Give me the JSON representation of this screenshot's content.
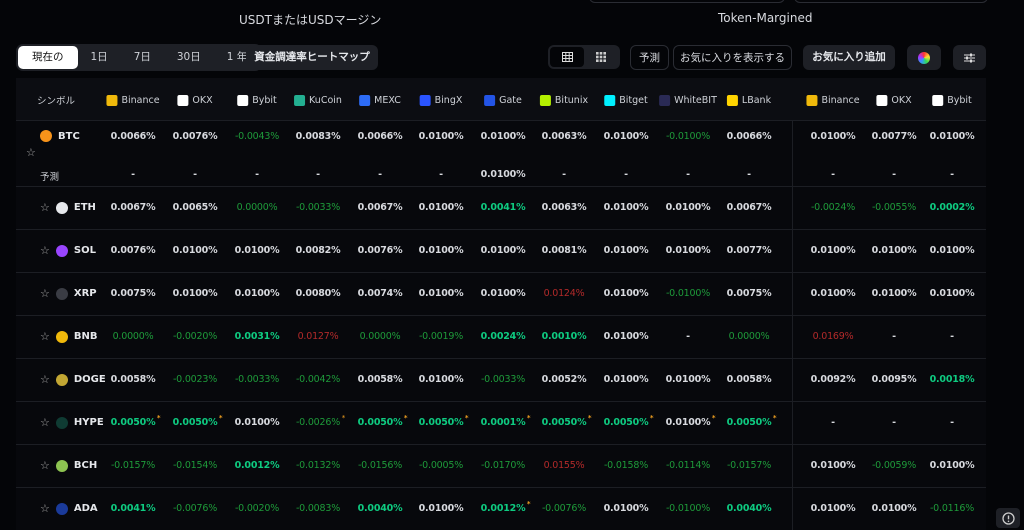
{
  "sections": {
    "usdt": "USDTまたはUSDマージン",
    "token": "Token-Margined"
  },
  "periods": [
    "現在の",
    "1日",
    "7日",
    "30日",
    "1 年"
  ],
  "heatmap_button": "資金調達率ヒートマップ",
  "toolbar": {
    "forecast": "予測",
    "show_favorites": "お気に入りを表示する",
    "add_favorites": "お気に入り追加"
  },
  "table": {
    "symbol_header": "シンボル",
    "exchanges": [
      {
        "name": "Binance",
        "color": "#f0b90b"
      },
      {
        "name": "OKX",
        "color": "#ffffff"
      },
      {
        "name": "Bybit",
        "color": "#ffffff"
      },
      {
        "name": "KuCoin",
        "color": "#23af91"
      },
      {
        "name": "MEXC",
        "color": "#2d6cf6"
      },
      {
        "name": "BingX",
        "color": "#2a54ff"
      },
      {
        "name": "Gate",
        "color": "#2354e6"
      },
      {
        "name": "Bitunix",
        "color": "#b4f000"
      },
      {
        "name": "Bitget",
        "color": "#00f0ff"
      },
      {
        "name": "WhiteBIT",
        "color": "#2a2a55"
      },
      {
        "name": "LBank",
        "color": "#ffd400"
      },
      {
        "name": "Binance",
        "color": "#f0b90b"
      },
      {
        "name": "OKX",
        "color": "#ffffff"
      },
      {
        "name": "Bybit",
        "color": "#ffffff"
      }
    ],
    "forecast_label": "予測",
    "tone_colors": {
      "w": "#d8dadf",
      "g": "#0ecb81",
      "d": "#1e9a3a",
      "r": "#b22a2a"
    },
    "rows": [
      {
        "symbol": "BTC",
        "coin_color": "#f7931a",
        "cells": [
          [
            "0.0066%",
            "w"
          ],
          [
            "0.0076%",
            "w"
          ],
          [
            "-0.0043%",
            "d"
          ],
          [
            "0.0083%",
            "w"
          ],
          [
            "0.0066%",
            "w"
          ],
          [
            "0.0100%",
            "w"
          ],
          [
            "0.0100%",
            "w"
          ],
          [
            "0.0063%",
            "w"
          ],
          [
            "0.0100%",
            "w"
          ],
          [
            "-0.0100%",
            "d"
          ],
          [
            "0.0066%",
            "w"
          ],
          [
            "0.0100%",
            "w"
          ],
          [
            "0.0077%",
            "w"
          ],
          [
            "0.0100%",
            "w"
          ]
        ],
        "forecast": [
          [
            "-",
            "w"
          ],
          [
            "-",
            "w"
          ],
          [
            "-",
            "w"
          ],
          [
            "-",
            "w"
          ],
          [
            "-",
            "w"
          ],
          [
            "-",
            "w"
          ],
          [
            "0.0100%",
            "w"
          ],
          [
            "-",
            "w"
          ],
          [
            "-",
            "w"
          ],
          [
            "-",
            "w"
          ],
          [
            "-",
            "w"
          ],
          [
            "-",
            "w"
          ],
          [
            "-",
            "w"
          ],
          [
            "-",
            "w"
          ]
        ]
      },
      {
        "symbol": "ETH",
        "coin_color": "#e6e8ec",
        "cells": [
          [
            "0.0067%",
            "w"
          ],
          [
            "0.0065%",
            "w"
          ],
          [
            "0.0000%",
            "d"
          ],
          [
            "-0.0033%",
            "d"
          ],
          [
            "0.0067%",
            "w"
          ],
          [
            "0.0100%",
            "w"
          ],
          [
            "0.0041%",
            "g"
          ],
          [
            "0.0063%",
            "w"
          ],
          [
            "0.0100%",
            "w"
          ],
          [
            "0.0100%",
            "w"
          ],
          [
            "0.0067%",
            "w"
          ],
          [
            "-0.0024%",
            "d"
          ],
          [
            "-0.0055%",
            "d"
          ],
          [
            "0.0002%",
            "g"
          ]
        ]
      },
      {
        "symbol": "SOL",
        "coin_color": "#9945ff",
        "cells": [
          [
            "0.0076%",
            "w"
          ],
          [
            "0.0100%",
            "w"
          ],
          [
            "0.0100%",
            "w"
          ],
          [
            "0.0082%",
            "w"
          ],
          [
            "0.0076%",
            "w"
          ],
          [
            "0.0100%",
            "w"
          ],
          [
            "0.0100%",
            "w"
          ],
          [
            "0.0081%",
            "w"
          ],
          [
            "0.0100%",
            "w"
          ],
          [
            "0.0100%",
            "w"
          ],
          [
            "0.0077%",
            "w"
          ],
          [
            "0.0100%",
            "w"
          ],
          [
            "0.0100%",
            "w"
          ],
          [
            "0.0100%",
            "w"
          ]
        ]
      },
      {
        "symbol": "XRP",
        "coin_color": "#3a3c44",
        "cells": [
          [
            "0.0075%",
            "w"
          ],
          [
            "0.0100%",
            "w"
          ],
          [
            "0.0100%",
            "w"
          ],
          [
            "0.0080%",
            "w"
          ],
          [
            "0.0074%",
            "w"
          ],
          [
            "0.0100%",
            "w"
          ],
          [
            "0.0100%",
            "w"
          ],
          [
            "0.0124%",
            "r"
          ],
          [
            "0.0100%",
            "w"
          ],
          [
            "-0.0100%",
            "d"
          ],
          [
            "0.0075%",
            "w"
          ],
          [
            "0.0100%",
            "w"
          ],
          [
            "0.0100%",
            "w"
          ],
          [
            "0.0100%",
            "w"
          ]
        ]
      },
      {
        "symbol": "BNB",
        "coin_color": "#f0b90b",
        "cells": [
          [
            "0.0000%",
            "d"
          ],
          [
            "-0.0020%",
            "d"
          ],
          [
            "0.0031%",
            "g"
          ],
          [
            "0.0127%",
            "r"
          ],
          [
            "0.0000%",
            "d"
          ],
          [
            "-0.0019%",
            "d"
          ],
          [
            "0.0024%",
            "g"
          ],
          [
            "0.0010%",
            "g"
          ],
          [
            "0.0100%",
            "w"
          ],
          [
            "-",
            "w"
          ],
          [
            "0.0000%",
            "d"
          ],
          [
            "0.0169%",
            "r"
          ],
          [
            "-",
            "w"
          ],
          [
            "-",
            "w"
          ]
        ]
      },
      {
        "symbol": "DOGE",
        "coin_color": "#c2a633",
        "cells": [
          [
            "0.0058%",
            "w"
          ],
          [
            "-0.0023%",
            "d"
          ],
          [
            "-0.0033%",
            "d"
          ],
          [
            "-0.0042%",
            "d"
          ],
          [
            "0.0058%",
            "w"
          ],
          [
            "0.0100%",
            "w"
          ],
          [
            "-0.0033%",
            "d"
          ],
          [
            "0.0052%",
            "w"
          ],
          [
            "0.0100%",
            "w"
          ],
          [
            "0.0100%",
            "w"
          ],
          [
            "0.0058%",
            "w"
          ],
          [
            "0.0092%",
            "w"
          ],
          [
            "0.0095%",
            "w"
          ],
          [
            "0.0018%",
            "g"
          ]
        ]
      },
      {
        "symbol": "HYPE",
        "coin_color": "#0f3b33",
        "cells": [
          [
            "0.0050%",
            "g",
            "*"
          ],
          [
            "0.0050%",
            "g",
            "*"
          ],
          [
            "0.0100%",
            "w"
          ],
          [
            "-0.0026%",
            "d",
            "*"
          ],
          [
            "0.0050%",
            "g",
            "*"
          ],
          [
            "0.0050%",
            "g",
            "*"
          ],
          [
            "0.0001%",
            "g",
            "*"
          ],
          [
            "0.0050%",
            "g",
            "*"
          ],
          [
            "0.0050%",
            "g",
            "*"
          ],
          [
            "0.0100%",
            "w",
            "*"
          ],
          [
            "0.0050%",
            "g",
            "*"
          ],
          [
            "-",
            "w"
          ],
          [
            "-",
            "w"
          ],
          [
            "-",
            "w"
          ]
        ]
      },
      {
        "symbol": "BCH",
        "coin_color": "#8dc351",
        "cells": [
          [
            "-0.0157%",
            "d"
          ],
          [
            "-0.0154%",
            "d"
          ],
          [
            "0.0012%",
            "g"
          ],
          [
            "-0.0132%",
            "d"
          ],
          [
            "-0.0156%",
            "d"
          ],
          [
            "-0.0005%",
            "d"
          ],
          [
            "-0.0170%",
            "d"
          ],
          [
            "0.0155%",
            "r"
          ],
          [
            "-0.0158%",
            "d"
          ],
          [
            "-0.0114%",
            "d"
          ],
          [
            "-0.0157%",
            "d"
          ],
          [
            "0.0100%",
            "w"
          ],
          [
            "-0.0059%",
            "d"
          ],
          [
            "0.0100%",
            "w"
          ]
        ]
      },
      {
        "symbol": "ADA",
        "coin_color": "#1a3a9a",
        "cells": [
          [
            "0.0041%",
            "g"
          ],
          [
            "-0.0076%",
            "d"
          ],
          [
            "-0.0020%",
            "d"
          ],
          [
            "-0.0083%",
            "d"
          ],
          [
            "0.0040%",
            "g"
          ],
          [
            "0.0100%",
            "w"
          ],
          [
            "0.0012%",
            "g",
            "*"
          ],
          [
            "-0.0076%",
            "d"
          ],
          [
            "0.0100%",
            "w"
          ],
          [
            "-0.0100%",
            "d"
          ],
          [
            "0.0040%",
            "g"
          ],
          [
            "0.0100%",
            "w"
          ],
          [
            "0.0100%",
            "w"
          ],
          [
            "-0.0116%",
            "d"
          ]
        ]
      }
    ]
  }
}
